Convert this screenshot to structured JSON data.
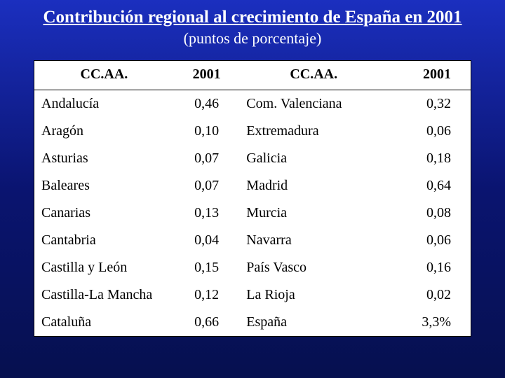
{
  "slide": {
    "title": "Contribución regional al crecimiento de España en 2001",
    "subtitle": "(puntos de porcentaje)",
    "background_gradient": [
      "#1b2fbf",
      "#0a1470",
      "#06104f"
    ],
    "text_color": "#ffffff"
  },
  "table": {
    "type": "table",
    "background_color": "#ffffff",
    "text_color": "#000000",
    "border_color": "#000000",
    "font_family": "Times New Roman",
    "header_fontsize": 20,
    "body_fontsize": 20,
    "columns": [
      {
        "key": "cca1",
        "label": "CC.AA.",
        "align": "left",
        "bold": true
      },
      {
        "key": "v1",
        "label": "2001",
        "align": "center",
        "bold": true
      },
      {
        "key": "cca2",
        "label": "CC.AA.",
        "align": "left",
        "bold": true
      },
      {
        "key": "v2",
        "label": "2001",
        "align": "right",
        "bold": true
      }
    ],
    "rows": [
      {
        "cca1": "Andalucía",
        "v1": "0,46",
        "cca2": "Com. Valenciana",
        "v2": "0,32"
      },
      {
        "cca1": "Aragón",
        "v1": "0,10",
        "cca2": "Extremadura",
        "v2": "0,06"
      },
      {
        "cca1": "Asturias",
        "v1": "0,07",
        "cca2": "Galicia",
        "v2": "0,18"
      },
      {
        "cca1": "Baleares",
        "v1": "0,07",
        "cca2": "Madrid",
        "v2": "0,64"
      },
      {
        "cca1": "Canarias",
        "v1": "0,13",
        "cca2": "Murcia",
        "v2": "0,08"
      },
      {
        "cca1": "Cantabria",
        "v1": "0,04",
        "cca2": "Navarra",
        "v2": "0,06"
      },
      {
        "cca1": "Castilla y León",
        "v1": "0,15",
        "cca2": "País Vasco",
        "v2": "0,16"
      },
      {
        "cca1": "Castilla-La Mancha",
        "v1": "0,12",
        "cca2": "La Rioja",
        "v2": "0,02"
      },
      {
        "cca1": "Cataluña",
        "v1": "0,66",
        "cca2": "España",
        "v2": "3,3%"
      }
    ]
  }
}
